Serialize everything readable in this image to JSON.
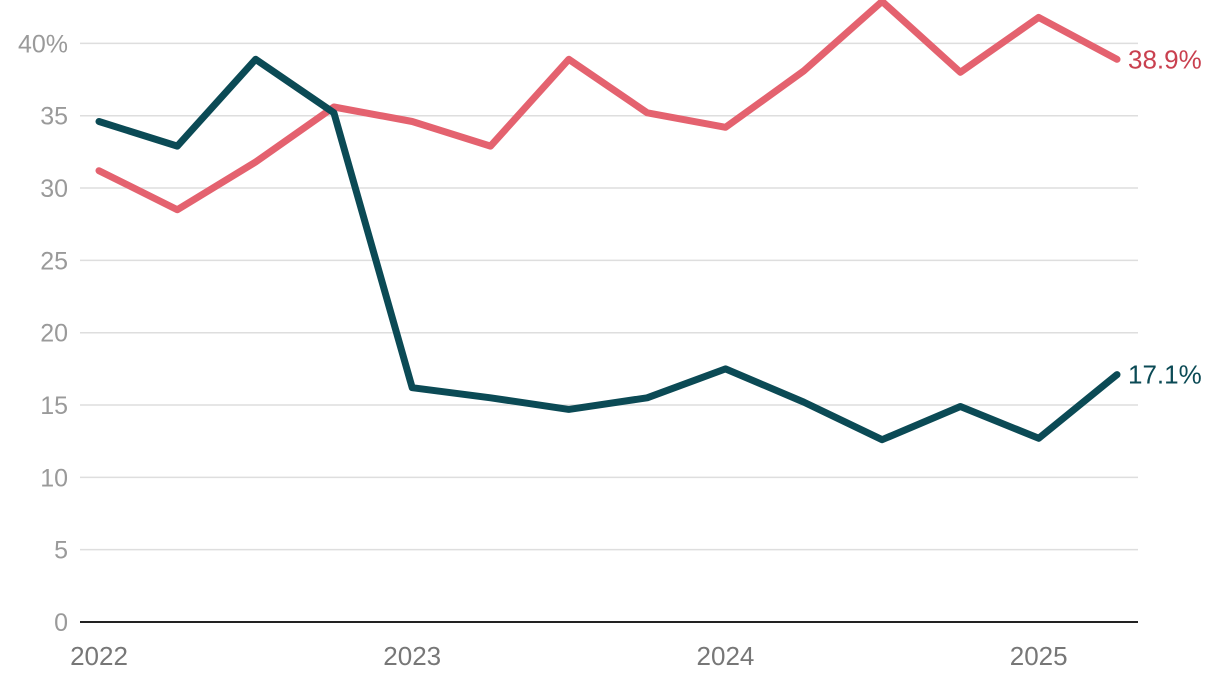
{
  "chart_data": {
    "type": "line",
    "x": [
      "2022-Q1",
      "2022-Q2",
      "2022-Q3",
      "2022-Q4",
      "2023-Q1",
      "2023-Q2",
      "2023-Q3",
      "2023-Q4",
      "2024-Q1",
      "2024-Q2",
      "2024-Q3",
      "2024-Q4",
      "2025-Q1",
      "2025-Q2"
    ],
    "series": [
      {
        "color": "#e4626f",
        "label_color": "#c9404f",
        "values": [
          31.2,
          28.5,
          31.8,
          35.6,
          34.6,
          32.9,
          38.9,
          35.2,
          34.2,
          38.1,
          42.9,
          38.0,
          41.8,
          38.9
        ],
        "end_label": "38.9%"
      },
      {
        "color": "#0b4a55",
        "label_color": "#0b4a55",
        "values": [
          34.6,
          32.9,
          38.9,
          35.2,
          16.2,
          15.5,
          14.7,
          15.5,
          17.5,
          15.2,
          12.6,
          14.9,
          12.7,
          17.1
        ],
        "end_label": "17.1%"
      }
    ],
    "ylim": [
      0,
      43
    ],
    "yticks": [
      0,
      5,
      10,
      15,
      20,
      25,
      30,
      35,
      40
    ],
    "ytick_labels": [
      "0",
      "5",
      "10",
      "15",
      "20",
      "25",
      "30",
      "35",
      "40%"
    ],
    "xticks": [
      "2022-Q1",
      "2023-Q1",
      "2024-Q1",
      "2025-Q1"
    ],
    "xtick_labels": [
      "2022",
      "2023",
      "2024",
      "2025"
    ],
    "grid": true,
    "title": "",
    "xlabel": "",
    "ylabel": ""
  }
}
